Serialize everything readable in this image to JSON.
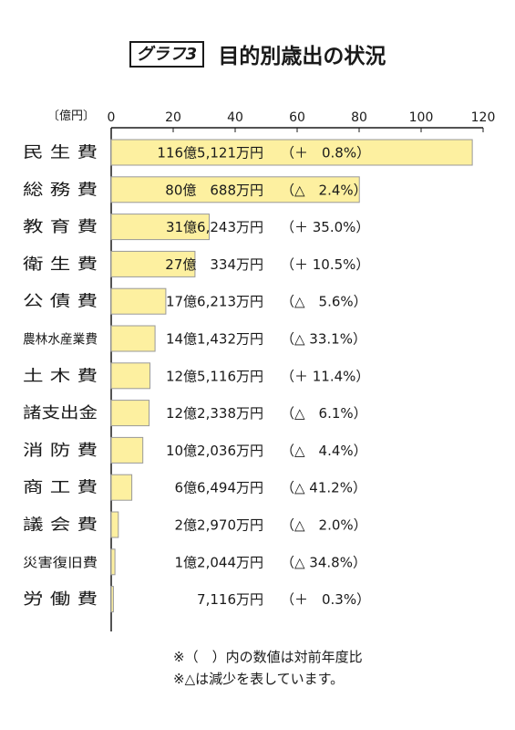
{
  "header": {
    "graph_label": "グラフ3",
    "title": "目的別歳出の状況"
  },
  "chart_data": {
    "type": "bar",
    "orientation": "horizontal",
    "title": "目的別歳出の状況",
    "unit_label": "〔億円〕",
    "xlim": [
      0,
      120
    ],
    "ticks": [
      0,
      20,
      40,
      60,
      80,
      100,
      120
    ],
    "grid": false,
    "bar_color": "#fdf0a0",
    "bar_stroke": "#999999",
    "categories": [
      "民 生 費",
      "総 務 費",
      "教 育 費",
      "衛 生 費",
      "公 債 費",
      "農林水産業費",
      "土 木 費",
      "諸支出金",
      "消 防 費",
      "商 工 費",
      "議 会 費",
      "災害復旧費",
      "労 働 費"
    ],
    "values": [
      116.5121,
      80.0688,
      31.6243,
      27.0334,
      17.6213,
      14.1432,
      12.5116,
      12.2338,
      10.2036,
      6.6494,
      2.297,
      1.2044,
      0.7116
    ],
    "amount_labels": [
      "116億5,121万円",
      "80億　688万円",
      "31億6,243万円",
      "27億　334万円",
      "17億6,213万円",
      "14億1,432万円",
      "12億5,116万円",
      "12億2,338万円",
      "10億2,036万円",
      "6億6,494万円",
      "2億2,970万円",
      "1億2,044万円",
      "7,116万円"
    ],
    "change_labels": [
      "（＋　0.8%）",
      "（△　2.4%）",
      "（＋ 35.0%）",
      "（＋ 10.5%）",
      "（△　5.6%）",
      "（△ 33.1%）",
      "（＋ 11.4%）",
      "（△　6.1%）",
      "（△　4.4%）",
      "（△ 41.2%）",
      "（△　2.0%）",
      "（△ 34.8%）",
      "（＋　0.3%）"
    ]
  },
  "notes": [
    "※（　）内の数値は対前年度比",
    "※△は減少を表しています。"
  ]
}
